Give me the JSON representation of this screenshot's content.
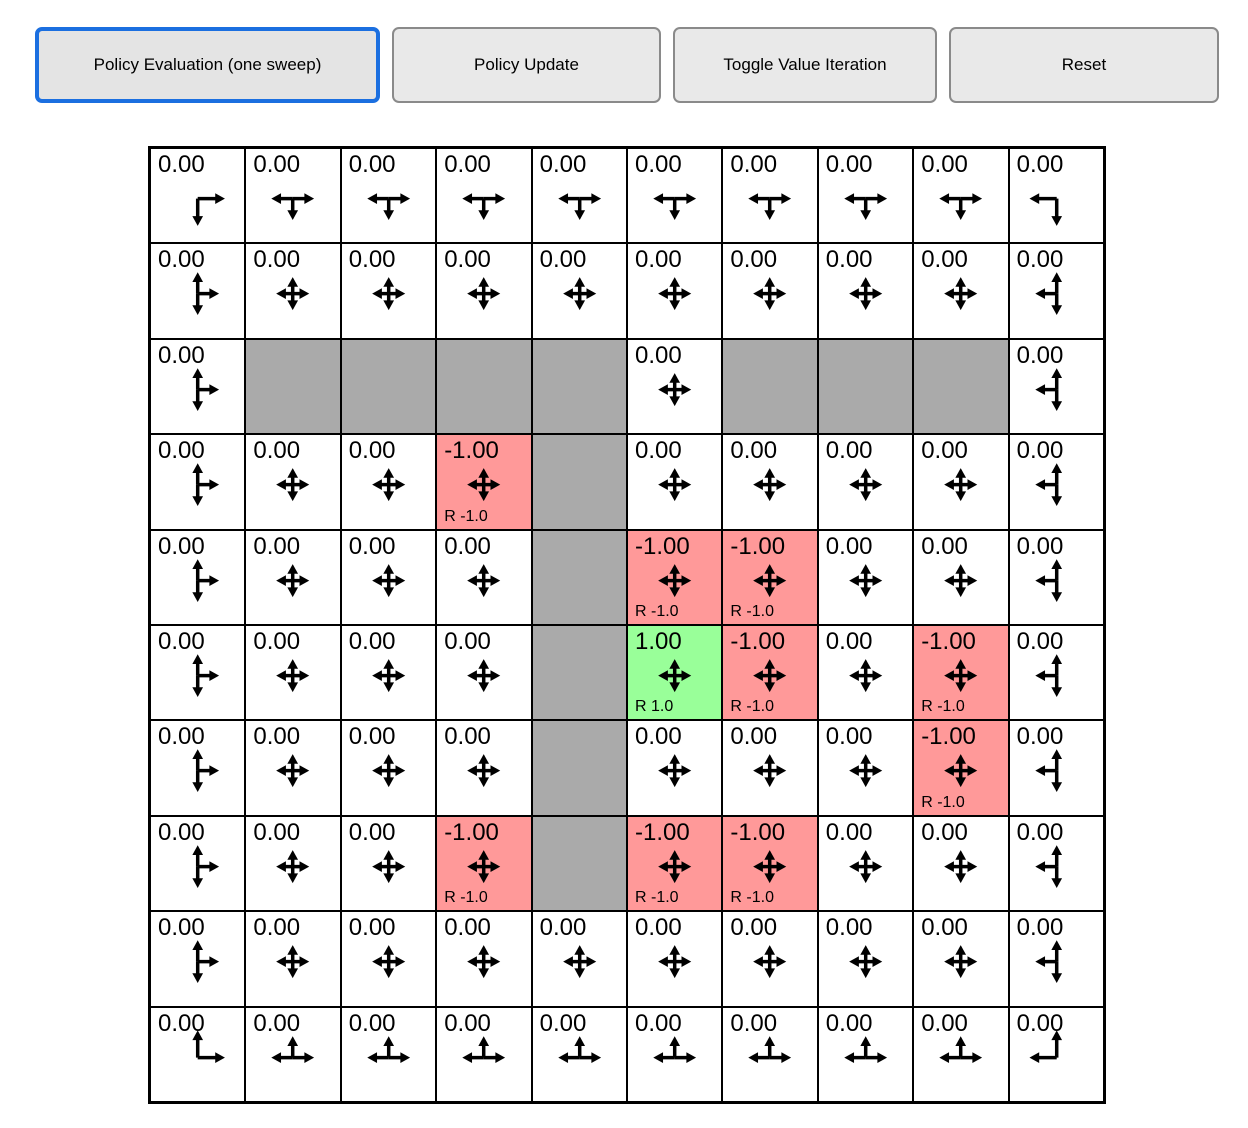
{
  "toolbar": {
    "buttons": [
      {
        "label": "Policy Evaluation (one sweep)",
        "active": true
      },
      {
        "label": "Policy Update",
        "active": false
      },
      {
        "label": "Toggle Value Iteration",
        "active": false
      },
      {
        "label": "Reset",
        "active": false
      }
    ]
  },
  "colors": {
    "wall": "#aaaaaa",
    "negative_reward": "#ff9999",
    "positive_reward": "#99ff99",
    "active_button_border": "#1b6fe0",
    "arrow": "#000000"
  },
  "grid": {
    "rows": 10,
    "cols": 10,
    "cells": [
      [
        {
          "v": "0.00",
          "a": "RD",
          "bg": "w"
        },
        {
          "v": "0.00",
          "a": "LRD",
          "bg": "w"
        },
        {
          "v": "0.00",
          "a": "LRD",
          "bg": "w"
        },
        {
          "v": "0.00",
          "a": "LRD",
          "bg": "w"
        },
        {
          "v": "0.00",
          "a": "LRD",
          "bg": "w"
        },
        {
          "v": "0.00",
          "a": "LRD",
          "bg": "w"
        },
        {
          "v": "0.00",
          "a": "LRD",
          "bg": "w"
        },
        {
          "v": "0.00",
          "a": "LRD",
          "bg": "w"
        },
        {
          "v": "0.00",
          "a": "LRD",
          "bg": "w"
        },
        {
          "v": "0.00",
          "a": "LD",
          "bg": "w"
        }
      ],
      [
        {
          "v": "0.00",
          "a": "URD",
          "bg": "w"
        },
        {
          "v": "0.00",
          "a": "ULRD",
          "bg": "w"
        },
        {
          "v": "0.00",
          "a": "ULRD",
          "bg": "w"
        },
        {
          "v": "0.00",
          "a": "ULRD",
          "bg": "w"
        },
        {
          "v": "0.00",
          "a": "ULRD",
          "bg": "w"
        },
        {
          "v": "0.00",
          "a": "ULRD",
          "bg": "w"
        },
        {
          "v": "0.00",
          "a": "ULRD",
          "bg": "w"
        },
        {
          "v": "0.00",
          "a": "ULRD",
          "bg": "w"
        },
        {
          "v": "0.00",
          "a": "ULRD",
          "bg": "w"
        },
        {
          "v": "0.00",
          "a": "ULD",
          "bg": "w"
        }
      ],
      [
        {
          "v": "0.00",
          "a": "URD",
          "bg": "w"
        },
        {
          "bg": "#"
        },
        {
          "bg": "#"
        },
        {
          "bg": "#"
        },
        {
          "bg": "#"
        },
        {
          "v": "0.00",
          "a": "ULRD",
          "bg": "w"
        },
        {
          "bg": "#"
        },
        {
          "bg": "#"
        },
        {
          "bg": "#"
        },
        {
          "v": "0.00",
          "a": "ULD",
          "bg": "w"
        }
      ],
      [
        {
          "v": "0.00",
          "a": "URD",
          "bg": "w"
        },
        {
          "v": "0.00",
          "a": "ULRD",
          "bg": "w"
        },
        {
          "v": "0.00",
          "a": "ULRD",
          "bg": "w"
        },
        {
          "v": "-1.00",
          "r": "R -1.0",
          "a": "ULRD",
          "bg": "n"
        },
        {
          "bg": "#"
        },
        {
          "v": "0.00",
          "a": "ULRD",
          "bg": "w"
        },
        {
          "v": "0.00",
          "a": "ULRD",
          "bg": "w"
        },
        {
          "v": "0.00",
          "a": "ULRD",
          "bg": "w"
        },
        {
          "v": "0.00",
          "a": "ULRD",
          "bg": "w"
        },
        {
          "v": "0.00",
          "a": "ULD",
          "bg": "w"
        }
      ],
      [
        {
          "v": "0.00",
          "a": "URD",
          "bg": "w"
        },
        {
          "v": "0.00",
          "a": "ULRD",
          "bg": "w"
        },
        {
          "v": "0.00",
          "a": "ULRD",
          "bg": "w"
        },
        {
          "v": "0.00",
          "a": "ULRD",
          "bg": "w"
        },
        {
          "bg": "#"
        },
        {
          "v": "-1.00",
          "r": "R -1.0",
          "a": "ULRD",
          "bg": "n"
        },
        {
          "v": "-1.00",
          "r": "R -1.0",
          "a": "ULRD",
          "bg": "n"
        },
        {
          "v": "0.00",
          "a": "ULRD",
          "bg": "w"
        },
        {
          "v": "0.00",
          "a": "ULRD",
          "bg": "w"
        },
        {
          "v": "0.00",
          "a": "ULD",
          "bg": "w"
        }
      ],
      [
        {
          "v": "0.00",
          "a": "URD",
          "bg": "w"
        },
        {
          "v": "0.00",
          "a": "ULRD",
          "bg": "w"
        },
        {
          "v": "0.00",
          "a": "ULRD",
          "bg": "w"
        },
        {
          "v": "0.00",
          "a": "ULRD",
          "bg": "w"
        },
        {
          "bg": "#"
        },
        {
          "v": "1.00",
          "r": "R 1.0",
          "a": "ULRD",
          "bg": "p"
        },
        {
          "v": "-1.00",
          "r": "R -1.0",
          "a": "ULRD",
          "bg": "n"
        },
        {
          "v": "0.00",
          "a": "ULRD",
          "bg": "w"
        },
        {
          "v": "-1.00",
          "r": "R -1.0",
          "a": "ULRD",
          "bg": "n"
        },
        {
          "v": "0.00",
          "a": "ULD",
          "bg": "w"
        }
      ],
      [
        {
          "v": "0.00",
          "a": "URD",
          "bg": "w"
        },
        {
          "v": "0.00",
          "a": "ULRD",
          "bg": "w"
        },
        {
          "v": "0.00",
          "a": "ULRD",
          "bg": "w"
        },
        {
          "v": "0.00",
          "a": "ULRD",
          "bg": "w"
        },
        {
          "bg": "#"
        },
        {
          "v": "0.00",
          "a": "ULRD",
          "bg": "w"
        },
        {
          "v": "0.00",
          "a": "ULRD",
          "bg": "w"
        },
        {
          "v": "0.00",
          "a": "ULRD",
          "bg": "w"
        },
        {
          "v": "-1.00",
          "r": "R -1.0",
          "a": "ULRD",
          "bg": "n"
        },
        {
          "v": "0.00",
          "a": "ULD",
          "bg": "w"
        }
      ],
      [
        {
          "v": "0.00",
          "a": "URD",
          "bg": "w"
        },
        {
          "v": "0.00",
          "a": "ULRD",
          "bg": "w"
        },
        {
          "v": "0.00",
          "a": "ULRD",
          "bg": "w"
        },
        {
          "v": "-1.00",
          "r": "R -1.0",
          "a": "ULRD",
          "bg": "n"
        },
        {
          "bg": "#"
        },
        {
          "v": "-1.00",
          "r": "R -1.0",
          "a": "ULRD",
          "bg": "n"
        },
        {
          "v": "-1.00",
          "r": "R -1.0",
          "a": "ULRD",
          "bg": "n"
        },
        {
          "v": "0.00",
          "a": "ULRD",
          "bg": "w"
        },
        {
          "v": "0.00",
          "a": "ULRD",
          "bg": "w"
        },
        {
          "v": "0.00",
          "a": "ULD",
          "bg": "w"
        }
      ],
      [
        {
          "v": "0.00",
          "a": "URD",
          "bg": "w"
        },
        {
          "v": "0.00",
          "a": "ULRD",
          "bg": "w"
        },
        {
          "v": "0.00",
          "a": "ULRD",
          "bg": "w"
        },
        {
          "v": "0.00",
          "a": "ULRD",
          "bg": "w"
        },
        {
          "v": "0.00",
          "a": "ULRD",
          "bg": "w"
        },
        {
          "v": "0.00",
          "a": "ULRD",
          "bg": "w"
        },
        {
          "v": "0.00",
          "a": "ULRD",
          "bg": "w"
        },
        {
          "v": "0.00",
          "a": "ULRD",
          "bg": "w"
        },
        {
          "v": "0.00",
          "a": "ULRD",
          "bg": "w"
        },
        {
          "v": "0.00",
          "a": "ULD",
          "bg": "w"
        }
      ],
      [
        {
          "v": "0.00",
          "a": "UR",
          "bg": "w"
        },
        {
          "v": "0.00",
          "a": "ULR",
          "bg": "w"
        },
        {
          "v": "0.00",
          "a": "ULR",
          "bg": "w"
        },
        {
          "v": "0.00",
          "a": "ULR",
          "bg": "w"
        },
        {
          "v": "0.00",
          "a": "ULR",
          "bg": "w"
        },
        {
          "v": "0.00",
          "a": "ULR",
          "bg": "w"
        },
        {
          "v": "0.00",
          "a": "ULR",
          "bg": "w"
        },
        {
          "v": "0.00",
          "a": "ULR",
          "bg": "w"
        },
        {
          "v": "0.00",
          "a": "ULR",
          "bg": "w"
        },
        {
          "v": "0.00",
          "a": "UL",
          "bg": "w"
        }
      ]
    ]
  }
}
